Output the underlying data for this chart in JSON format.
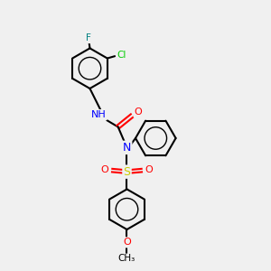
{
  "background_color": "#f0f0f0",
  "bond_color": "#000000",
  "atom_colors": {
    "N": "#0000ff",
    "O": "#ff0000",
    "S": "#cccc00",
    "Cl": "#00cc00",
    "F": "#008080",
    "C": "#000000",
    "H": "#000000"
  }
}
